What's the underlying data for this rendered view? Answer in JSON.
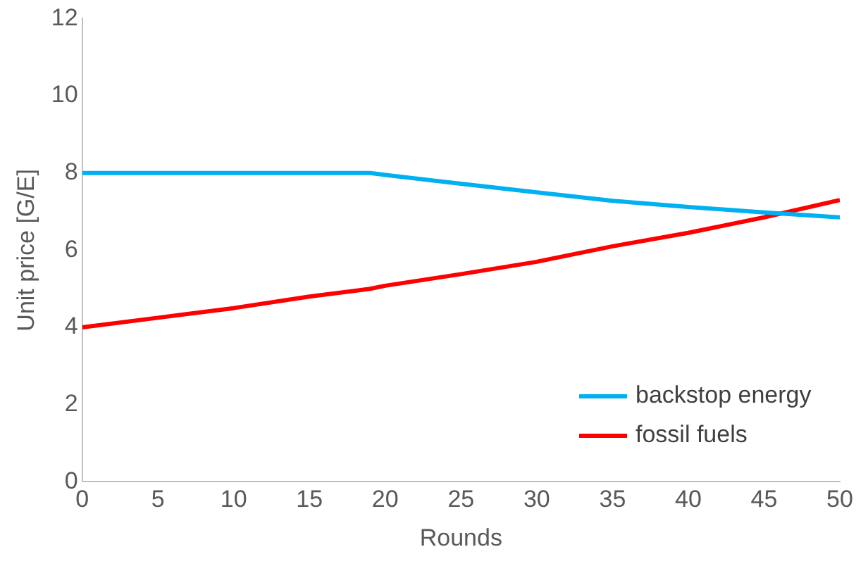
{
  "chart_data": {
    "type": "line",
    "xlabel": "Rounds",
    "ylabel": "Unit price [G/E]",
    "x": [
      0,
      5,
      10,
      15,
      19,
      20,
      25,
      30,
      35,
      40,
      45,
      50
    ],
    "series": [
      {
        "name": "backstop energy",
        "color": "#00b0f0",
        "values": [
          8,
          8,
          8,
          8,
          8,
          7.95,
          7.72,
          7.5,
          7.28,
          7.12,
          6.98,
          6.85
        ]
      },
      {
        "name": "fossil fuels",
        "color": "#ff0000",
        "values": [
          4,
          4.25,
          4.5,
          4.8,
          5.0,
          5.08,
          5.38,
          5.7,
          6.1,
          6.45,
          6.85,
          7.3
        ]
      }
    ],
    "xlim": [
      0,
      50
    ],
    "xticks": [
      0,
      5,
      10,
      15,
      20,
      25,
      30,
      35,
      40,
      45,
      50
    ],
    "ylim": [
      0,
      12
    ],
    "yticks": [
      0,
      2,
      4,
      6,
      8,
      10,
      12
    ],
    "grid": false,
    "legend": "bottom right",
    "marker": "none",
    "line_style": "solid"
  }
}
